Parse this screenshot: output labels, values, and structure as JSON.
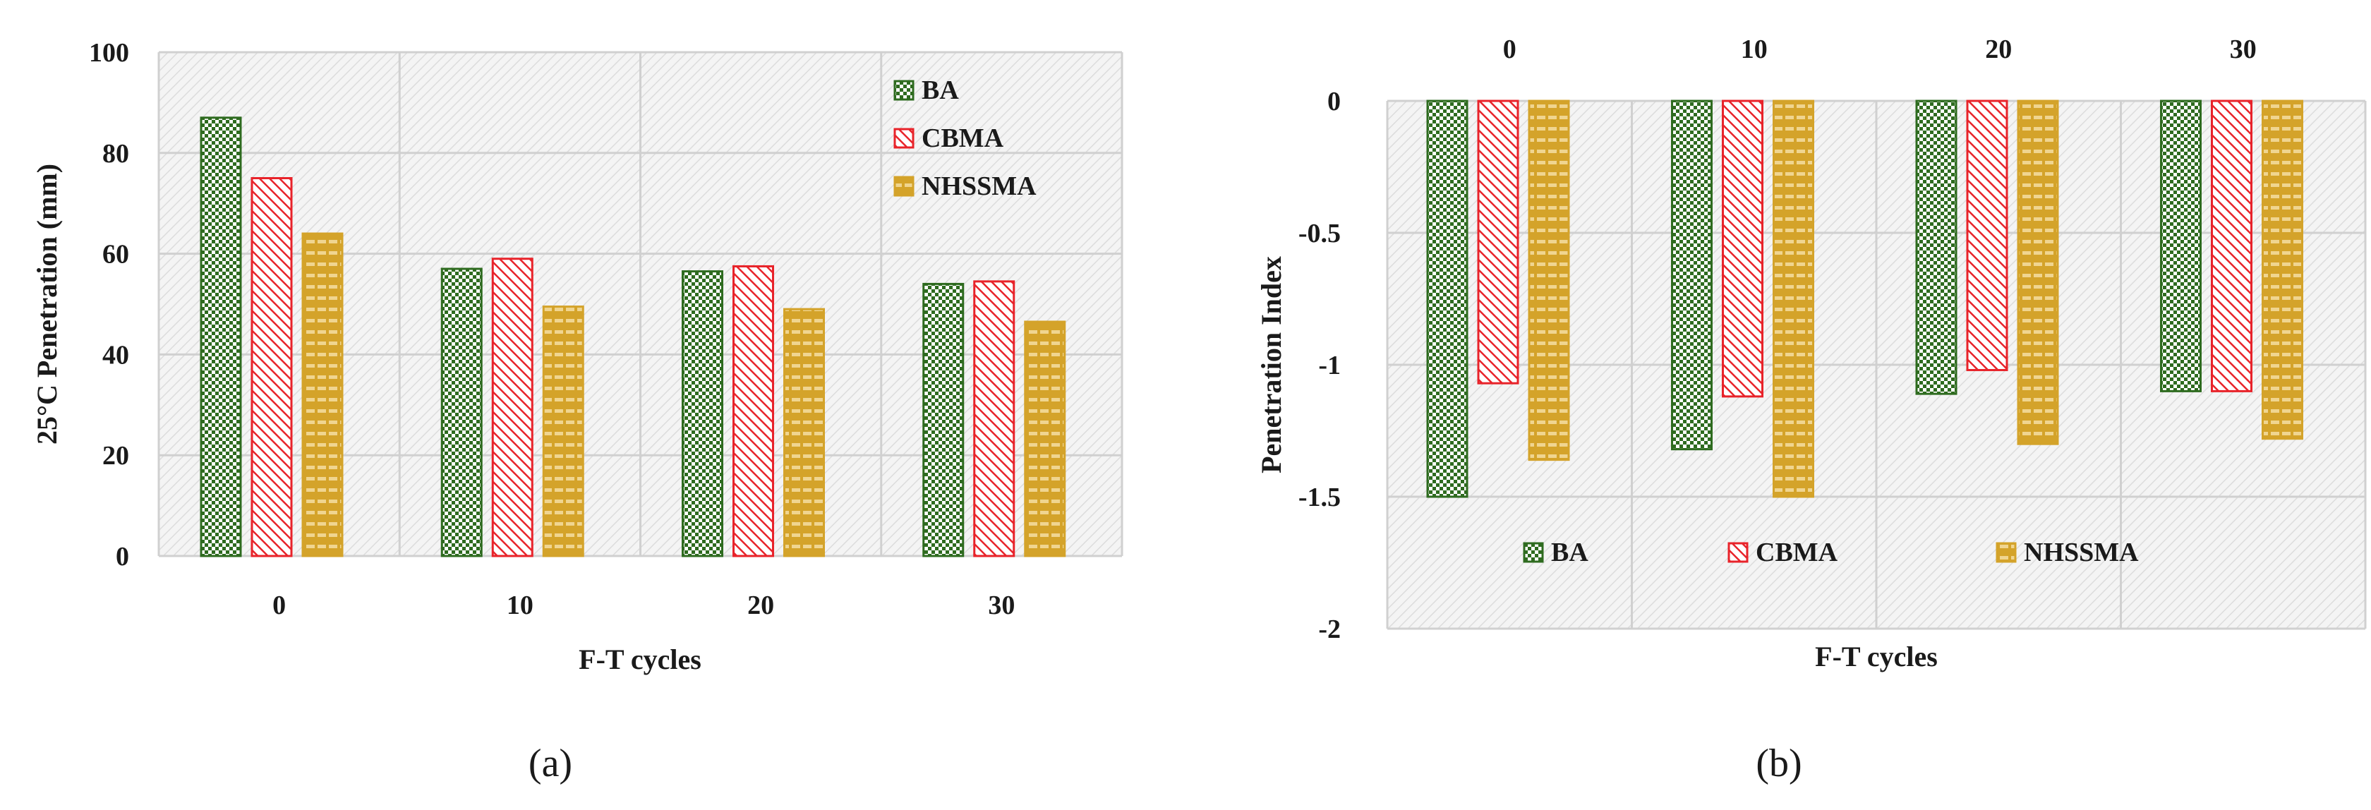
{
  "colors": {
    "BA": "#2e6b1f",
    "CBMA": "#e8232a",
    "NHSSMA": "#d4a32a",
    "grid": "#d0d0d0",
    "plot_bg": "#f3f3f3"
  },
  "series_names": [
    "BA",
    "CBMA",
    "NHSSMA"
  ],
  "panel_labels": {
    "a": "(a)",
    "b": "(b)"
  },
  "chart_data": [
    {
      "id": "a",
      "type": "bar",
      "categories": [
        "0",
        "10",
        "20",
        "30"
      ],
      "series": [
        {
          "name": "BA",
          "values": [
            87,
            57,
            56.5,
            54
          ]
        },
        {
          "name": "CBMA",
          "values": [
            75,
            59,
            57.5,
            54.5
          ]
        },
        {
          "name": "NHSSMA",
          "values": [
            64,
            49.5,
            49,
            46.5
          ]
        }
      ],
      "xlabel": "F-T cycles",
      "ylabel": "25°C Penetration (mm)",
      "ylim": [
        0,
        100
      ],
      "yticks": [
        "0",
        "20",
        "40",
        "60",
        "80",
        "100"
      ],
      "legend_position": "top-right",
      "grid": true
    },
    {
      "id": "b",
      "type": "bar",
      "categories": [
        "0",
        "10",
        "20",
        "30"
      ],
      "series": [
        {
          "name": "BA",
          "values": [
            -1.5,
            -1.32,
            -1.11,
            -1.1
          ]
        },
        {
          "name": "CBMA",
          "values": [
            -1.07,
            -1.12,
            -1.02,
            -1.1
          ]
        },
        {
          "name": "NHSSMA",
          "values": [
            -1.36,
            -1.5,
            -1.3,
            -1.28
          ]
        }
      ],
      "xlabel": "F-T cycles",
      "ylabel": "Penetration Index",
      "ylim": [
        -2,
        0
      ],
      "yticks": [
        "0",
        "-0.5",
        "-1",
        "-1.5",
        "-2"
      ],
      "xaxis_position": "top",
      "legend_position": "bottom",
      "grid": true
    }
  ]
}
